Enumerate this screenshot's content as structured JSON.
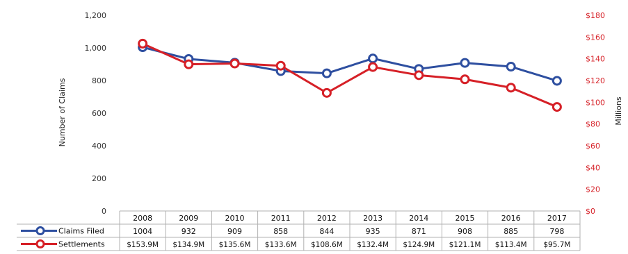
{
  "chart_data": {
    "type": "line",
    "categories": [
      "2008",
      "2009",
      "2010",
      "2011",
      "2012",
      "2013",
      "2014",
      "2015",
      "2016",
      "2017"
    ],
    "series": [
      {
        "name": "Claims Filed",
        "axis": "left",
        "color": "#2e4fa0",
        "values": [
          1004,
          932,
          909,
          858,
          844,
          935,
          871,
          908,
          885,
          798
        ],
        "labels": [
          "1004",
          "932",
          "909",
          "858",
          "844",
          "935",
          "871",
          "908",
          "885",
          "798"
        ]
      },
      {
        "name": "Settlements",
        "axis": "right",
        "color": "#d62027",
        "values": [
          153.9,
          134.9,
          135.6,
          133.6,
          108.6,
          132.4,
          124.9,
          121.1,
          113.4,
          95.7
        ],
        "labels": [
          "$153.9M",
          "$134.9M",
          "$135.6M",
          "$133.6M",
          "$108.6M",
          "$132.4M",
          "$124.9M",
          "$121.1M",
          "$113.4M",
          "$95.7M"
        ]
      }
    ],
    "ylabel": "Number of Claims",
    "y2label": "Millions",
    "ylim": [
      0,
      1200
    ],
    "y2lim": [
      0,
      180
    ],
    "yticks": [
      "0",
      "200",
      "400",
      "600",
      "800",
      "1,000",
      "1,200"
    ],
    "y2ticks": [
      "$0",
      "$20",
      "$40",
      "$60",
      "$80",
      "$100",
      "$120",
      "$140",
      "$160",
      "$180"
    ],
    "grid": false,
    "legend": "data-table-left"
  }
}
